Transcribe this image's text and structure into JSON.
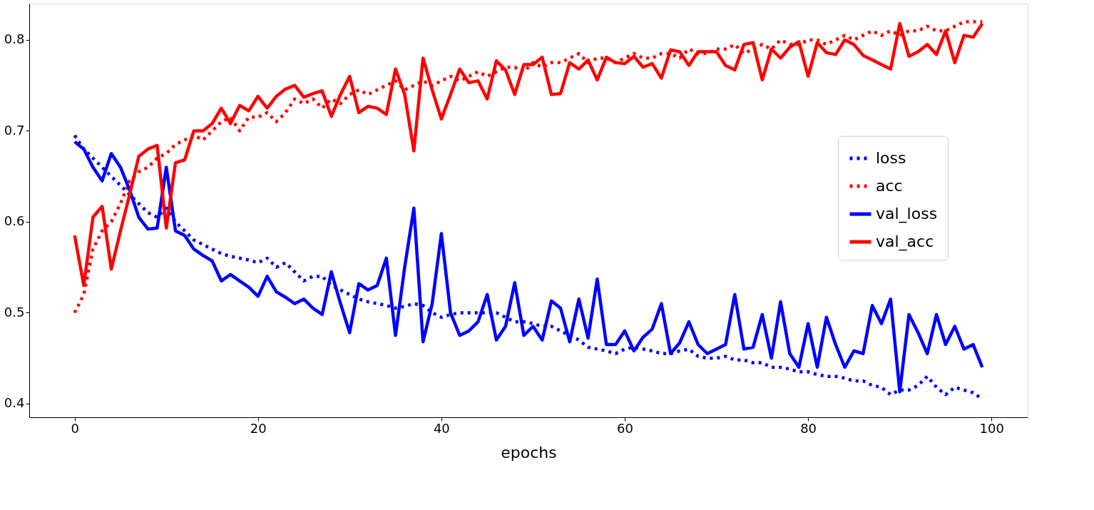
{
  "chart_data": {
    "type": "line",
    "xlabel": "epochs",
    "x": [
      0,
      1,
      2,
      3,
      4,
      5,
      6,
      7,
      8,
      9,
      10,
      11,
      12,
      13,
      14,
      15,
      16,
      17,
      18,
      19,
      20,
      21,
      22,
      23,
      24,
      25,
      26,
      27,
      28,
      29,
      30,
      31,
      32,
      33,
      34,
      35,
      36,
      37,
      38,
      39,
      40,
      41,
      42,
      43,
      44,
      45,
      46,
      47,
      48,
      49,
      50,
      51,
      52,
      53,
      54,
      55,
      56,
      57,
      58,
      59,
      60,
      61,
      62,
      63,
      64,
      65,
      66,
      67,
      68,
      69,
      70,
      71,
      72,
      73,
      74,
      75,
      76,
      77,
      78,
      79,
      80,
      81,
      82,
      83,
      84,
      85,
      86,
      87,
      88,
      89,
      90,
      91,
      92,
      93,
      94,
      95,
      96,
      97,
      98,
      99
    ],
    "xlim": [
      -4.95,
      103.95
    ],
    "xticks": [
      0,
      20,
      40,
      60,
      80,
      100
    ],
    "ylim": [
      0.385,
      0.84
    ],
    "yticks": [
      0.4,
      0.5,
      0.6,
      0.7,
      0.8
    ],
    "grid": false,
    "legend": "right",
    "series": [
      {
        "name": "loss",
        "color": "#0000ff",
        "line_style": "dotted",
        "values": [
          0.695,
          0.68,
          0.67,
          0.66,
          0.65,
          0.64,
          0.63,
          0.62,
          0.61,
          0.605,
          0.615,
          0.6,
          0.59,
          0.58,
          0.575,
          0.57,
          0.565,
          0.562,
          0.56,
          0.558,
          0.555,
          0.56,
          0.55,
          0.555,
          0.545,
          0.535,
          0.54,
          0.54,
          0.53,
          0.525,
          0.52,
          0.515,
          0.512,
          0.51,
          0.508,
          0.505,
          0.507,
          0.51,
          0.508,
          0.5,
          0.495,
          0.498,
          0.5,
          0.5,
          0.5,
          0.5,
          0.5,
          0.495,
          0.49,
          0.49,
          0.488,
          0.485,
          0.485,
          0.48,
          0.475,
          0.47,
          0.462,
          0.46,
          0.458,
          0.455,
          0.46,
          0.462,
          0.46,
          0.458,
          0.455,
          0.455,
          0.458,
          0.46,
          0.452,
          0.45,
          0.45,
          0.452,
          0.448,
          0.448,
          0.445,
          0.445,
          0.44,
          0.44,
          0.438,
          0.435,
          0.435,
          0.432,
          0.43,
          0.43,
          0.428,
          0.425,
          0.425,
          0.42,
          0.418,
          0.41,
          0.415,
          0.415,
          0.42,
          0.43,
          0.418,
          0.41,
          0.418,
          0.415,
          0.412,
          0.405
        ]
      },
      {
        "name": "acc",
        "color": "#ff0000",
        "line_style": "dotted",
        "values": [
          0.5,
          0.52,
          0.57,
          0.59,
          0.6,
          0.62,
          0.645,
          0.655,
          0.66,
          0.67,
          0.675,
          0.685,
          0.69,
          0.695,
          0.69,
          0.7,
          0.71,
          0.715,
          0.7,
          0.715,
          0.715,
          0.72,
          0.71,
          0.72,
          0.735,
          0.73,
          0.735,
          0.725,
          0.735,
          0.73,
          0.74,
          0.745,
          0.74,
          0.745,
          0.75,
          0.755,
          0.745,
          0.75,
          0.755,
          0.75,
          0.755,
          0.76,
          0.755,
          0.76,
          0.765,
          0.76,
          0.765,
          0.77,
          0.77,
          0.765,
          0.775,
          0.77,
          0.775,
          0.775,
          0.78,
          0.785,
          0.775,
          0.78,
          0.78,
          0.775,
          0.78,
          0.785,
          0.78,
          0.78,
          0.785,
          0.785,
          0.78,
          0.79,
          0.785,
          0.785,
          0.79,
          0.79,
          0.795,
          0.785,
          0.79,
          0.795,
          0.79,
          0.8,
          0.795,
          0.795,
          0.8,
          0.8,
          0.795,
          0.8,
          0.805,
          0.8,
          0.805,
          0.81,
          0.805,
          0.81,
          0.805,
          0.81,
          0.81,
          0.815,
          0.81,
          0.81,
          0.815,
          0.82,
          0.82,
          0.82
        ]
      },
      {
        "name": "val_loss",
        "color": "#0000ff",
        "line_style": "solid",
        "values": [
          0.688,
          0.68,
          0.66,
          0.645,
          0.675,
          0.66,
          0.635,
          0.605,
          0.592,
          0.593,
          0.66,
          0.59,
          0.585,
          0.57,
          0.563,
          0.557,
          0.535,
          0.542,
          0.535,
          0.528,
          0.518,
          0.54,
          0.523,
          0.517,
          0.51,
          0.515,
          0.505,
          0.498,
          0.545,
          0.51,
          0.478,
          0.532,
          0.525,
          0.53,
          0.56,
          0.475,
          0.55,
          0.615,
          0.468,
          0.51,
          0.587,
          0.5,
          0.475,
          0.48,
          0.49,
          0.52,
          0.47,
          0.485,
          0.533,
          0.475,
          0.485,
          0.47,
          0.513,
          0.505,
          0.468,
          0.515,
          0.472,
          0.537,
          0.465,
          0.465,
          0.48,
          0.458,
          0.473,
          0.482,
          0.51,
          0.455,
          0.467,
          0.49,
          0.465,
          0.455,
          0.46,
          0.465,
          0.52,
          0.46,
          0.462,
          0.498,
          0.45,
          0.512,
          0.455,
          0.44,
          0.488,
          0.44,
          0.495,
          0.465,
          0.44,
          0.458,
          0.455,
          0.508,
          0.488,
          0.515,
          0.413,
          0.498,
          0.478,
          0.455,
          0.498,
          0.465,
          0.485,
          0.46,
          0.465,
          0.44
        ]
      },
      {
        "name": "val_acc",
        "color": "#ff0000",
        "line_style": "solid",
        "values": [
          0.585,
          0.53,
          0.605,
          0.617,
          0.548,
          0.59,
          0.63,
          0.672,
          0.68,
          0.684,
          0.593,
          0.665,
          0.668,
          0.7,
          0.7,
          0.708,
          0.725,
          0.708,
          0.728,
          0.722,
          0.738,
          0.725,
          0.738,
          0.746,
          0.75,
          0.737,
          0.741,
          0.744,
          0.716,
          0.74,
          0.76,
          0.72,
          0.727,
          0.725,
          0.718,
          0.768,
          0.74,
          0.678,
          0.78,
          0.745,
          0.713,
          0.74,
          0.768,
          0.753,
          0.755,
          0.735,
          0.777,
          0.767,
          0.74,
          0.773,
          0.773,
          0.781,
          0.74,
          0.741,
          0.775,
          0.768,
          0.778,
          0.756,
          0.781,
          0.775,
          0.774,
          0.782,
          0.77,
          0.774,
          0.758,
          0.789,
          0.787,
          0.772,
          0.787,
          0.787,
          0.787,
          0.772,
          0.767,
          0.795,
          0.797,
          0.756,
          0.79,
          0.78,
          0.792,
          0.798,
          0.76,
          0.797,
          0.786,
          0.784,
          0.8,
          0.795,
          0.783,
          0.778,
          0.773,
          0.768,
          0.818,
          0.782,
          0.787,
          0.795,
          0.784,
          0.81,
          0.775,
          0.805,
          0.803,
          0.818
        ]
      }
    ]
  }
}
